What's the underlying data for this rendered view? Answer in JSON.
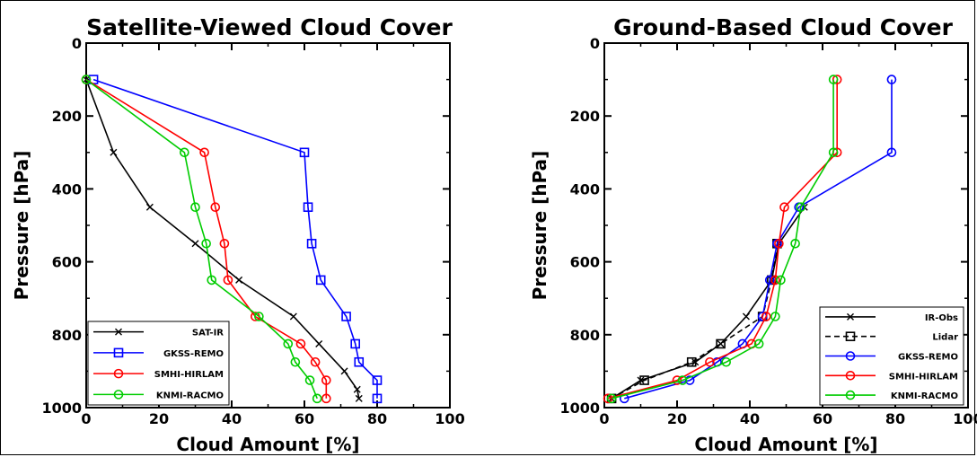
{
  "chart_data": [
    {
      "type": "line",
      "title": "Satellite-Viewed Cloud Cover",
      "xlabel": "Cloud Amount [%]",
      "ylabel": "Pressure [hPa]",
      "xlim": [
        0,
        100
      ],
      "ylim": [
        1000,
        0
      ],
      "xticks": [
        "0",
        "20",
        "40",
        "60",
        "80",
        "100"
      ],
      "yticks": [
        "0",
        "200",
        "400",
        "600",
        "800",
        "1000"
      ],
      "legend_position": "bottom-left",
      "series": [
        {
          "name": "SAT-IR",
          "color": "#000000",
          "marker": "x",
          "dashed": false,
          "x": [
            0,
            7.5,
            17.5,
            30,
            42,
            57,
            64,
            71,
            74.5,
            75
          ],
          "y": [
            100,
            300,
            450,
            550,
            650,
            750,
            825,
            900,
            950,
            975
          ]
        },
        {
          "name": "GKSS-REMO",
          "color": "#0000ff",
          "marker": "square",
          "dashed": false,
          "x": [
            2,
            60,
            61,
            62,
            64.5,
            71.5,
            74,
            75,
            80,
            80
          ],
          "y": [
            100,
            300,
            450,
            550,
            650,
            750,
            825,
            875,
            925,
            975
          ]
        },
        {
          "name": "SMHI-HIRLAM",
          "color": "#ff0000",
          "marker": "circle",
          "dashed": false,
          "x": [
            0,
            32.5,
            35.5,
            38,
            39,
            46.5,
            59,
            63,
            66,
            66
          ],
          "y": [
            100,
            300,
            450,
            550,
            650,
            750,
            825,
            875,
            925,
            975
          ]
        },
        {
          "name": "KNMI-RACMO",
          "color": "#00cc00",
          "marker": "circle",
          "dashed": false,
          "x": [
            0,
            27,
            30,
            33,
            34.5,
            47.5,
            55.5,
            57.5,
            61.5,
            63.5
          ],
          "y": [
            100,
            300,
            450,
            550,
            650,
            750,
            825,
            875,
            925,
            975
          ]
        }
      ]
    },
    {
      "type": "line",
      "title": "Ground-Based Cloud Cover",
      "xlabel": "Cloud Amount [%]",
      "ylabel": "Pressure [hPa]",
      "xlim": [
        0,
        100
      ],
      "ylim": [
        1000,
        0
      ],
      "xticks": [
        "0",
        "20",
        "40",
        "60",
        "80",
        "100"
      ],
      "yticks": [
        "0",
        "200",
        "400",
        "600",
        "800",
        "1000"
      ],
      "legend_position": "bottom-right",
      "series": [
        {
          "name": "IR-Obs",
          "color": "#000000",
          "marker": "x",
          "dashed": false,
          "x": [
            55,
            48,
            46,
            39,
            32,
            25,
            10,
            2
          ],
          "y": [
            450,
            550,
            650,
            750,
            825,
            875,
            925,
            975
          ]
        },
        {
          "name": "Lidar",
          "color": "#000000",
          "marker": "square",
          "dashed": true,
          "x": [
            47.5,
            46,
            43.5,
            32,
            24,
            11,
            2
          ],
          "y": [
            550,
            650,
            750,
            825,
            875,
            925,
            975
          ]
        },
        {
          "name": "GKSS-REMO",
          "color": "#0000ff",
          "marker": "circle",
          "dashed": false,
          "x": [
            79,
            79,
            53.5,
            47.5,
            45.5,
            43.5,
            38,
            31,
            23.5,
            5.5
          ],
          "y": [
            100,
            300,
            450,
            550,
            650,
            750,
            825,
            875,
            925,
            975
          ]
        },
        {
          "name": "SMHI-HIRLAM",
          "color": "#ff0000",
          "marker": "circle",
          "dashed": false,
          "x": [
            64,
            64,
            49.5,
            48,
            47,
            44.5,
            40.5,
            29,
            20,
            1
          ],
          "y": [
            100,
            300,
            450,
            550,
            650,
            750,
            825,
            875,
            925,
            975
          ]
        },
        {
          "name": "KNMI-RACMO",
          "color": "#00cc00",
          "marker": "circle",
          "dashed": false,
          "x": [
            63,
            63,
            54,
            52.5,
            48.5,
            47,
            42.5,
            33.5,
            21.5,
            2
          ],
          "y": [
            100,
            300,
            450,
            550,
            650,
            750,
            825,
            875,
            925,
            975
          ]
        }
      ]
    }
  ]
}
